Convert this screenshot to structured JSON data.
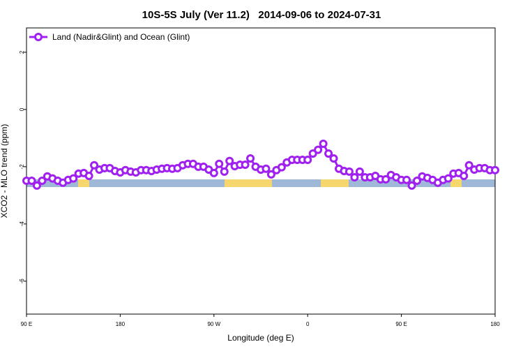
{
  "chart_data": {
    "type": "line",
    "title": "10S-5S July (Ver 11.2)   2014-09-06 to 2024-07-31",
    "x_label": "Longitude (deg E)",
    "y_label": "XCO2 - MLO trend (ppm)",
    "xlim": [
      90,
      540
    ],
    "ylim": [
      -7.15,
      2.85
    ],
    "xticks": [
      {
        "value": 90,
        "label": "90 E"
      },
      {
        "value": 180,
        "label": "180"
      },
      {
        "value": 270,
        "label": "90 W"
      },
      {
        "value": 360,
        "label": "0"
      },
      {
        "value": 450,
        "label": "90 E"
      },
      {
        "value": 540,
        "label": "180"
      }
    ],
    "yticks": [
      -6,
      -4,
      -2,
      0,
      2
    ],
    "legend": "top-left",
    "x": [
      90,
      95,
      100,
      105,
      110,
      115,
      120,
      125,
      130,
      135,
      140,
      145,
      150,
      155,
      160,
      165,
      170,
      175,
      180,
      185,
      190,
      195,
      200,
      205,
      210,
      215,
      220,
      225,
      230,
      235,
      240,
      245,
      250,
      255,
      260,
      265,
      270,
      275,
      280,
      285,
      290,
      295,
      300,
      305,
      310,
      315,
      320,
      325,
      330,
      335,
      340,
      345,
      350,
      355,
      360,
      365,
      370,
      375,
      380,
      385,
      390,
      395,
      400,
      405,
      410,
      415,
      420,
      425,
      430,
      435,
      440,
      445,
      450,
      455,
      460,
      465,
      470,
      475,
      480,
      485,
      490,
      495,
      500,
      505,
      510,
      515,
      520,
      525,
      530,
      535,
      540
    ],
    "series": [
      {
        "name": "Land (Nadir&Glint) and Ocean (Glint)",
        "color": "#a020f0",
        "values": [
          -2.49,
          -2.49,
          -2.66,
          -2.49,
          -2.34,
          -2.41,
          -2.49,
          -2.56,
          -2.46,
          -2.41,
          -2.24,
          -2.22,
          -2.32,
          -1.95,
          -2.1,
          -2.05,
          -2.05,
          -2.15,
          -2.2,
          -2.12,
          -2.17,
          -2.2,
          -2.12,
          -2.12,
          -2.15,
          -2.1,
          -2.07,
          -2.05,
          -2.07,
          -2.05,
          -1.95,
          -1.9,
          -1.9,
          -2.0,
          -2.0,
          -2.1,
          -2.22,
          -1.9,
          -2.17,
          -1.8,
          -1.98,
          -1.93,
          -1.93,
          -1.71,
          -2.0,
          -2.1,
          -2.07,
          -2.27,
          -2.12,
          -2.02,
          -1.85,
          -1.76,
          -1.76,
          -1.76,
          -1.76,
          -1.54,
          -1.41,
          -1.2,
          -1.54,
          -1.71,
          -2.07,
          -2.15,
          -2.17,
          -2.37,
          -2.17,
          -2.37,
          -2.37,
          -2.32,
          -2.44,
          -2.44,
          -2.29,
          -2.37,
          -2.46,
          -2.46,
          -2.66,
          -2.49,
          -2.34,
          -2.39,
          -2.46,
          -2.56,
          -2.46,
          -2.41,
          -2.24,
          -2.22,
          -2.32,
          -1.95,
          -2.1,
          -2.05,
          -2.05,
          -2.12,
          -2.12
        ]
      }
    ]
  }
}
